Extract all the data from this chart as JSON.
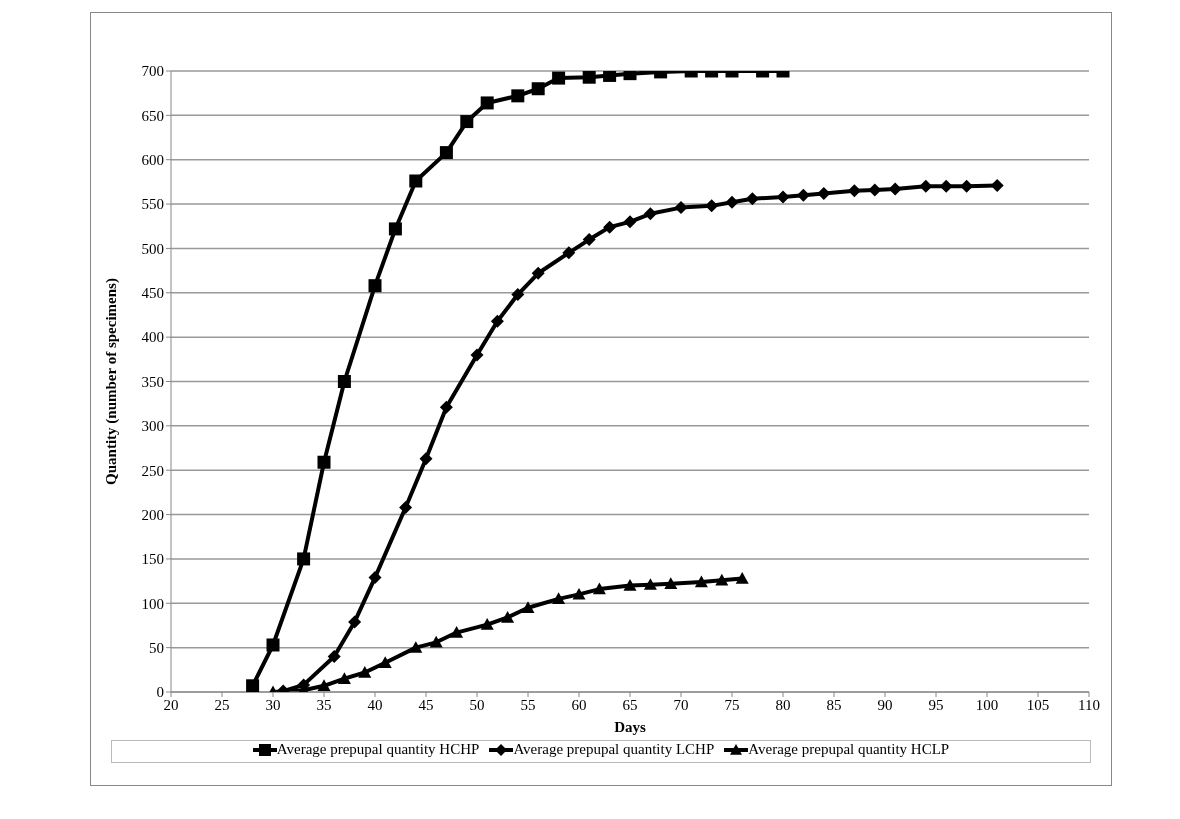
{
  "chart_data": {
    "type": "line",
    "xlabel": "Days",
    "ylabel": "Quantity (number of specimens)",
    "xlim": [
      20,
      110
    ],
    "xticks": [
      20,
      25,
      30,
      35,
      40,
      45,
      50,
      55,
      60,
      65,
      70,
      75,
      80,
      85,
      90,
      95,
      100,
      105,
      110
    ],
    "ylim": [
      0,
      700
    ],
    "yticks": [
      0,
      50,
      100,
      150,
      200,
      250,
      300,
      350,
      400,
      450,
      500,
      550,
      600,
      650,
      700
    ],
    "grid": "y",
    "legend": "bottom",
    "line_style": "solid",
    "series": [
      {
        "name": "Average prepupal quantity HCHP",
        "color": "#000000",
        "marker": "square",
        "x": [
          28,
          30,
          33,
          35,
          37,
          40,
          42,
          44,
          47,
          49,
          51,
          54,
          56,
          58,
          61,
          63,
          65,
          68,
          71,
          73,
          75,
          78,
          80
        ],
        "values": [
          7,
          53,
          150,
          259,
          350,
          458,
          522,
          576,
          608,
          643,
          664,
          672,
          680,
          692,
          693,
          695,
          697,
          699,
          700,
          700,
          700,
          700,
          700
        ]
      },
      {
        "name": "Average prepupal quantity LCHP",
        "color": "#000000",
        "marker": "diamond",
        "x": [
          31,
          33,
          36,
          38,
          40,
          43,
          45,
          47,
          50,
          52,
          54,
          56,
          59,
          61,
          63,
          65,
          67,
          70,
          73,
          75,
          77,
          80,
          82,
          84,
          87,
          89,
          91,
          94,
          96,
          98,
          101
        ],
        "values": [
          1,
          8,
          40,
          79,
          129,
          208,
          263,
          321,
          380,
          418,
          448,
          472,
          495,
          510,
          524,
          530,
          539,
          546,
          548,
          552,
          556,
          558,
          560,
          562,
          565,
          566,
          567,
          570,
          570,
          570,
          571
        ]
      },
      {
        "name": "Average prepupal quantity HCLP",
        "color": "#000000",
        "marker": "triangle",
        "x": [
          30,
          33,
          35,
          37,
          39,
          41,
          44,
          46,
          48,
          51,
          53,
          55,
          58,
          60,
          62,
          65,
          67,
          69,
          72,
          74,
          76
        ],
        "values": [
          0,
          2,
          7,
          15,
          22,
          33,
          50,
          56,
          67,
          76,
          84,
          95,
          105,
          110,
          116,
          120,
          121,
          122,
          124,
          126,
          128
        ]
      }
    ]
  }
}
